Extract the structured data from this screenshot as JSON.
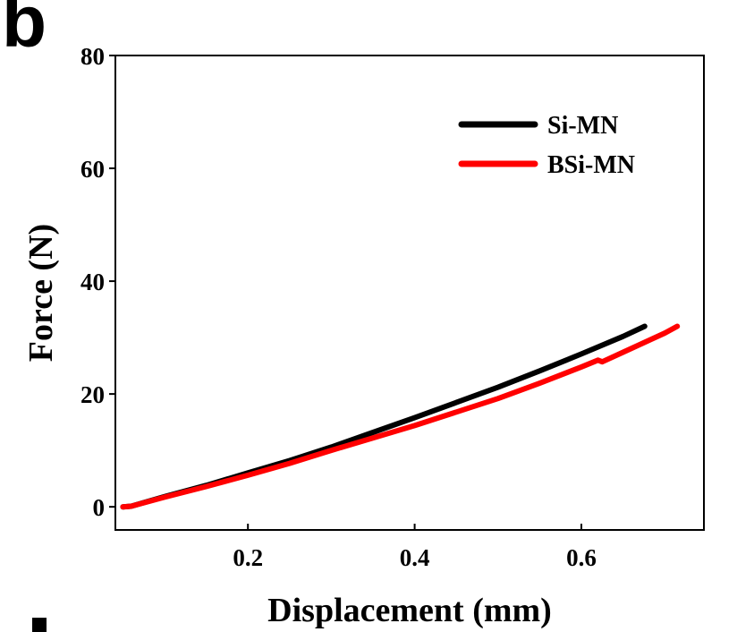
{
  "panel_label": "b",
  "chart_data": {
    "type": "line",
    "xlabel": "Displacement (mm)",
    "ylabel": "Force (N)",
    "xlim": [
      0.041,
      0.747
    ],
    "ylim": [
      -4.1,
      80
    ],
    "xticks": [
      0.2,
      0.4,
      0.6
    ],
    "xtick_labels": [
      "0.2",
      "0.4",
      "0.6"
    ],
    "yticks": [
      0,
      20,
      40,
      60,
      80
    ],
    "ytick_labels": [
      "0",
      "20",
      "40",
      "60",
      "80"
    ],
    "grid": false,
    "legend_position": "top-right",
    "series": [
      {
        "name": "Si-MN",
        "color": "#000000",
        "x": [
          0.05,
          0.06,
          0.1,
          0.15,
          0.2,
          0.25,
          0.3,
          0.35,
          0.4,
          0.45,
          0.5,
          0.55,
          0.6,
          0.65,
          0.676
        ],
        "y": [
          0,
          0.1,
          1.8,
          3.8,
          6.0,
          8.2,
          10.6,
          13.2,
          15.8,
          18.5,
          21.2,
          24.1,
          27.1,
          30.2,
          32.0
        ]
      },
      {
        "name": "BSi-MN",
        "color": "#ff0000",
        "x": [
          0.05,
          0.06,
          0.1,
          0.15,
          0.2,
          0.25,
          0.3,
          0.35,
          0.4,
          0.45,
          0.5,
          0.55,
          0.6,
          0.62,
          0.625,
          0.65,
          0.7,
          0.715
        ],
        "y": [
          0,
          0.1,
          1.7,
          3.6,
          5.6,
          7.7,
          10.0,
          12.2,
          14.4,
          16.8,
          19.2,
          21.9,
          24.8,
          26.0,
          25.7,
          27.4,
          30.8,
          32.0
        ]
      }
    ]
  }
}
